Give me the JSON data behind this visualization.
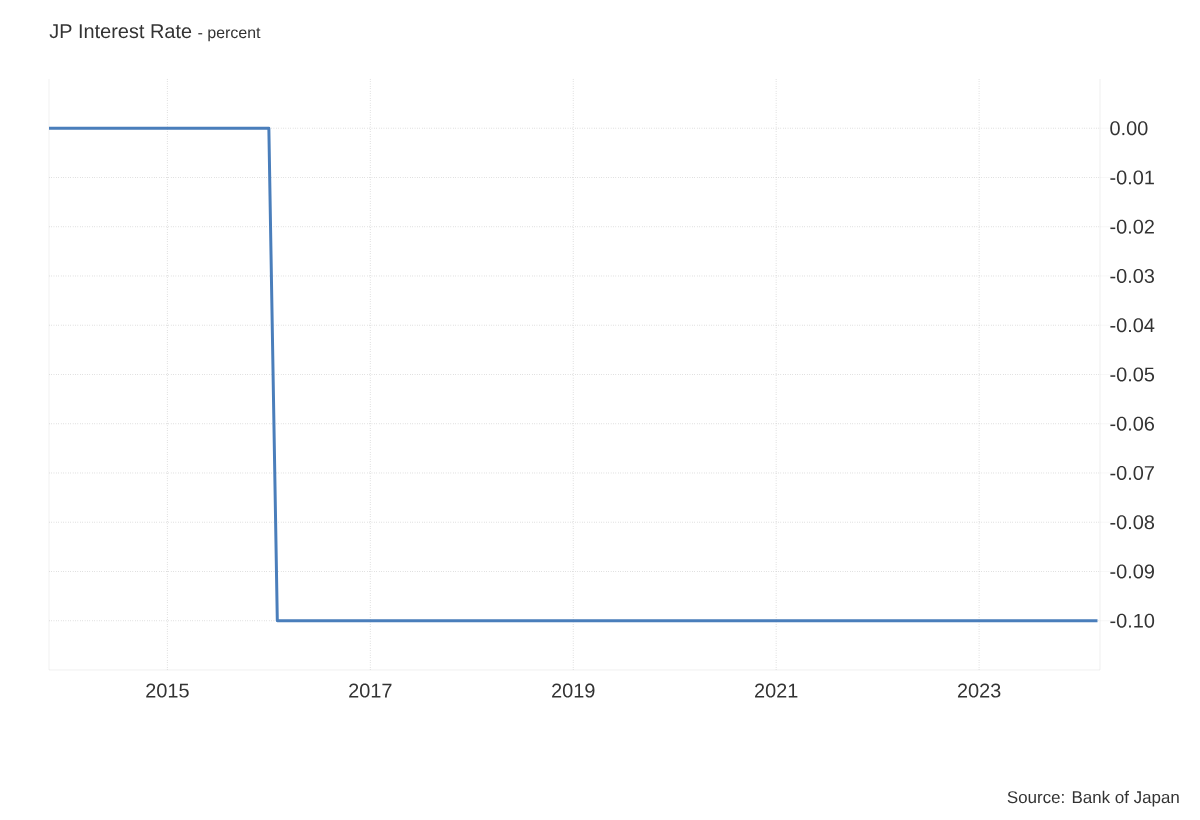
{
  "chart_data": {
    "type": "line",
    "title": "JP Interest Rate",
    "subtitle": "- percent",
    "x": [
      "2013-11",
      "2016-01",
      "2016-02",
      "2024-03"
    ],
    "series": [
      {
        "color": "#4a7ebb",
        "values": [
          0,
          0,
          -0.1,
          -0.1
        ]
      }
    ],
    "xlim": [
      "2013-11",
      "2024-03-10"
    ],
    "xticks": [
      "2015",
      "2017",
      "2019",
      "2021",
      "2023"
    ],
    "ylim": [
      -0.11,
      0.01
    ],
    "yticks": [
      {
        "value": 0,
        "label": "0.00"
      },
      {
        "value": -0.01,
        "label": "-0.01"
      },
      {
        "value": -0.02,
        "label": "-0.02"
      },
      {
        "value": -0.03,
        "label": "-0.03"
      },
      {
        "value": -0.04,
        "label": "-0.04"
      },
      {
        "value": -0.05,
        "label": "-0.05"
      },
      {
        "value": -0.06,
        "label": "-0.06"
      },
      {
        "value": -0.07,
        "label": "-0.07"
      },
      {
        "value": -0.08,
        "label": "-0.08"
      },
      {
        "value": -0.09,
        "label": "-0.09"
      },
      {
        "value": -0.1,
        "label": "-0.10"
      }
    ],
    "grid": true,
    "line_style": "solid",
    "marker": "none",
    "annotations": [
      "Source: Bank of Japan"
    ]
  }
}
